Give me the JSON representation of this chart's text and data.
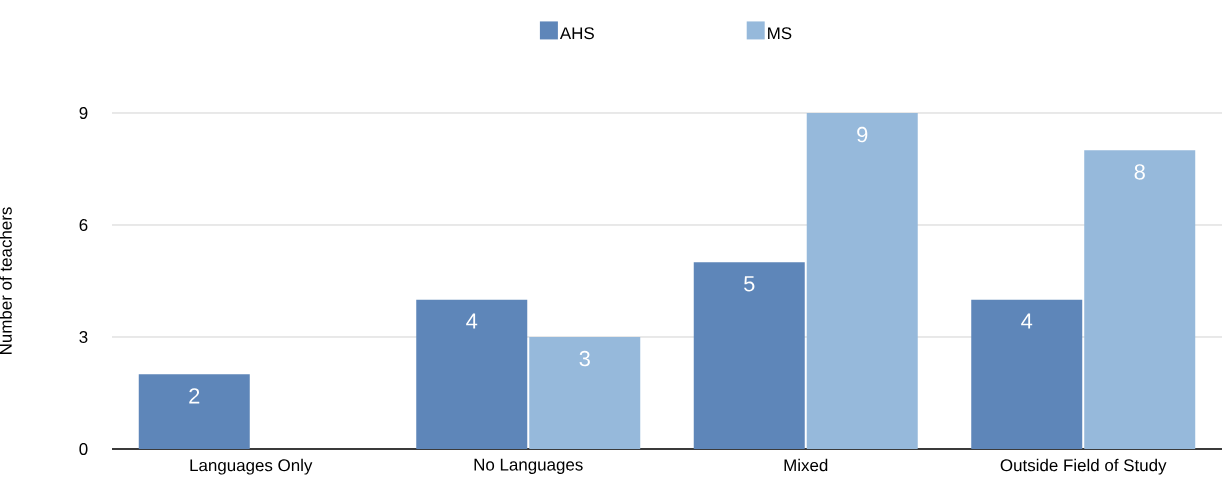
{
  "chart_data": {
    "type": "bar",
    "ylabel": "Number of teachers",
    "categories": [
      "Languages Only",
      "No Languages",
      "Mixed",
      "Outside Field of Study"
    ],
    "series": [
      {
        "name": "AHS",
        "color": "#5e86b9",
        "values": [
          2,
          4,
          5,
          4
        ]
      },
      {
        "name": "MS",
        "color": "#96b9db",
        "values": [
          null,
          3,
          9,
          8
        ]
      }
    ],
    "ylim": [
      0,
      9
    ],
    "yticks": [
      0,
      3,
      6,
      9
    ],
    "grid": "y",
    "legend": "top",
    "data_labels": true
  }
}
